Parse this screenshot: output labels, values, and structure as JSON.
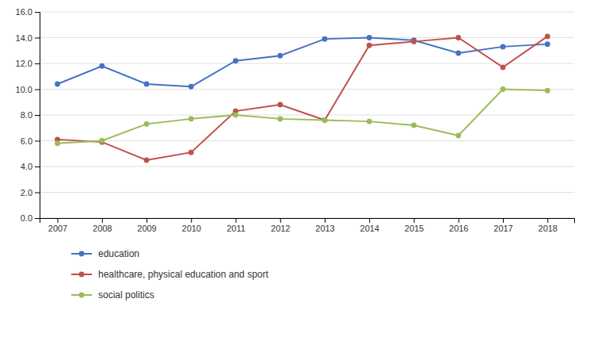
{
  "chart_data": {
    "type": "line",
    "x": [
      2007,
      2008,
      2009,
      2010,
      2011,
      2012,
      2013,
      2014,
      2015,
      2016,
      2017,
      2018
    ],
    "series": [
      {
        "name": "education",
        "color": "#4472C4",
        "marker": "circle",
        "values": [
          10.4,
          11.8,
          10.4,
          10.2,
          12.2,
          12.6,
          13.9,
          14.0,
          13.8,
          12.8,
          13.3,
          13.5
        ]
      },
      {
        "name": "healthcare, physical education and sport",
        "color": "#C0504D",
        "marker": "circle",
        "values": [
          6.1,
          5.9,
          4.5,
          5.1,
          8.3,
          8.8,
          7.6,
          13.4,
          13.7,
          14.0,
          11.7,
          14.1
        ]
      },
      {
        "name": "social politics",
        "color": "#9BBB59",
        "marker": "circle",
        "values": [
          5.8,
          6.0,
          7.3,
          7.7,
          8.0,
          7.7,
          7.6,
          7.5,
          7.2,
          6.4,
          10.0,
          9.9
        ]
      }
    ],
    "xlim": [
      2006.6,
      2018.6
    ],
    "xticks": [
      2007,
      2008,
      2009,
      2010,
      2011,
      2012,
      2013,
      2014,
      2015,
      2016,
      2017,
      2018
    ],
    "ylim": [
      0.0,
      16.0
    ],
    "yticks": [
      {
        "value": 0,
        "label": "0.0"
      },
      {
        "value": 2,
        "label": "2.0"
      },
      {
        "value": 4,
        "label": "4.0"
      },
      {
        "value": 6,
        "label": "6.0"
      },
      {
        "value": 8,
        "label": "8.0"
      },
      {
        "value": 10,
        "label": "10.0"
      },
      {
        "value": 12,
        "label": "12.0"
      },
      {
        "value": 14,
        "label": "14.0"
      },
      {
        "value": 16,
        "label": "16.0"
      }
    ],
    "grid": "y",
    "legend": "bottom"
  }
}
